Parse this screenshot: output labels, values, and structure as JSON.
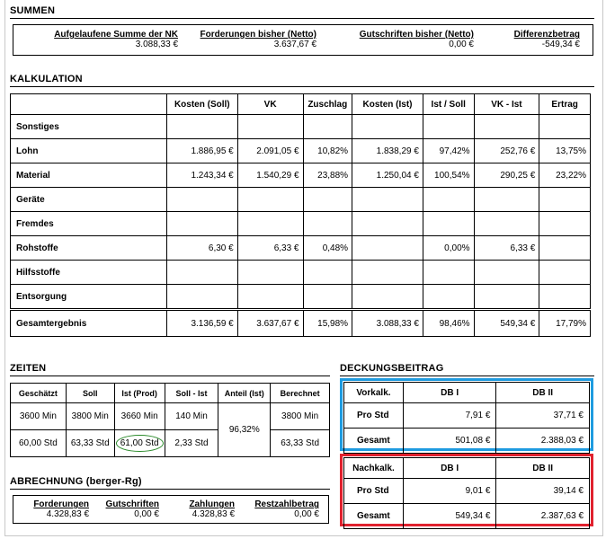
{
  "summen": {
    "title": "SUMMEN",
    "items": [
      {
        "label": "Aufgelaufene Summe der NK",
        "value": "3.088,33 €"
      },
      {
        "label": "Forderungen bisher (Netto)",
        "value": "3.637,67 €"
      },
      {
        "label": "Gutschriften bisher (Netto)",
        "value": "0,00 €"
      },
      {
        "label": "Differenzbetrag",
        "value": "-549,34 €"
      }
    ]
  },
  "kalkulation": {
    "title": "KALKULATION",
    "headers": [
      "Kosten (Soll)",
      "VK",
      "Zuschlag",
      "Kosten (Ist)",
      "Ist / Soll",
      "VK - Ist",
      "Ertrag"
    ],
    "rows": [
      {
        "label": "Sonstiges",
        "cells": [
          "",
          "",
          "",
          "",
          "",
          "",
          ""
        ]
      },
      {
        "label": "Lohn",
        "cells": [
          "1.886,95 €",
          "2.091,05 €",
          "10,82%",
          "1.838,29 €",
          "97,42%",
          "252,76 €",
          "13,75%"
        ]
      },
      {
        "label": "Material",
        "cells": [
          "1.243,34 €",
          "1.540,29 €",
          "23,88%",
          "1.250,04 €",
          "100,54%",
          "290,25 €",
          "23,22%"
        ]
      },
      {
        "label": "Geräte",
        "cells": [
          "",
          "",
          "",
          "",
          "",
          "",
          ""
        ]
      },
      {
        "label": "Fremdes",
        "cells": [
          "",
          "",
          "",
          "",
          "",
          "",
          ""
        ]
      },
      {
        "label": "Rohstoffe",
        "cells": [
          "6,30 €",
          "6,33 €",
          "0,48%",
          "",
          "0,00%",
          "6,33 €",
          ""
        ]
      },
      {
        "label": "Hilfsstoffe",
        "cells": [
          "",
          "",
          "",
          "",
          "",
          "",
          ""
        ]
      },
      {
        "label": "Entsorgung",
        "cells": [
          "",
          "",
          "",
          "",
          "",
          "",
          ""
        ]
      }
    ],
    "total": {
      "label": "Gesamtergebnis",
      "cells": [
        "3.136,59 €",
        "3.637,67 €",
        "15,98%",
        "3.088,33 €",
        "98,46%",
        "549,34 €",
        "17,79%"
      ]
    }
  },
  "zeiten": {
    "title": "ZEITEN",
    "headers": [
      "Geschätzt",
      "Soll",
      "Ist (Prod)",
      "Soll - Ist",
      "Anteil (Ist)",
      "Berechnet"
    ],
    "row1": [
      "3600 Min",
      "3800 Min",
      "3660 Min",
      "140 Min",
      "3800 Min"
    ],
    "row2": [
      "60,00 Std",
      "63,33 Std",
      "61,00 Std",
      "2,33 Std",
      "63,33 Std"
    ],
    "anteil": "96,32%",
    "highlight_color": "#2a8a2a"
  },
  "abrechnung": {
    "title": "ABRECHNUNG (berger-Rg)",
    "items": [
      {
        "label": "Forderungen",
        "value": "4.328,83 €"
      },
      {
        "label": "Gutschriften",
        "value": "0,00 €"
      },
      {
        "label": "Zahlungen",
        "value": "4.328,83 €"
      },
      {
        "label": "Restzahlbetrag",
        "value": "0,00 €"
      }
    ]
  },
  "deckungsbeitrag": {
    "title": "DECKUNGSBEITRAG",
    "col_db1": "DB I",
    "col_db2": "DB II",
    "vorkalk": {
      "label": "Vorkalk.",
      "color": "#1e9be0",
      "rows": [
        {
          "label": "Pro Std",
          "db1": "7,91 €",
          "db2": "37,71 €"
        },
        {
          "label": "Gesamt",
          "db1": "501,08 €",
          "db2": "2.388,03 €"
        }
      ]
    },
    "nachkalk": {
      "label": "Nachkalk.",
      "color": "#e0212e",
      "rows": [
        {
          "label": "Pro Std",
          "db1": "9,01 €",
          "db2": "39,14 €"
        },
        {
          "label": "Gesamt",
          "db1": "549,34 €",
          "db2": "2.387,63 €"
        }
      ]
    }
  }
}
